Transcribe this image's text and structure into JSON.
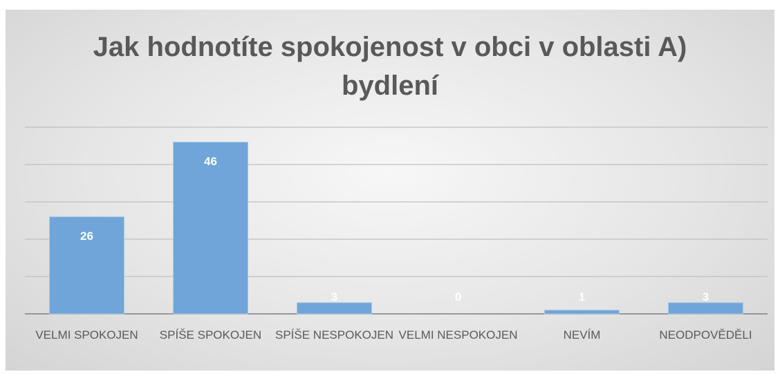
{
  "chart_data": {
    "type": "bar",
    "title": "Jak hodnotíte spokojenost v obci v oblasti A) bydlení",
    "categories": [
      "VELMI SPOKOJEN",
      "SPÍŠE SPOKOJEN",
      "SPÍŠE NESPOKOJEN",
      "VELMI NESPOKOJEN",
      "NEVÍM",
      "NEODPOVĚDĚLI"
    ],
    "values": [
      26,
      46,
      3,
      0,
      1,
      3
    ],
    "color": "#6fa5d8",
    "ylim": [
      0,
      50
    ],
    "yticks": [
      0,
      10,
      20,
      30,
      40,
      50
    ],
    "grid": true
  }
}
